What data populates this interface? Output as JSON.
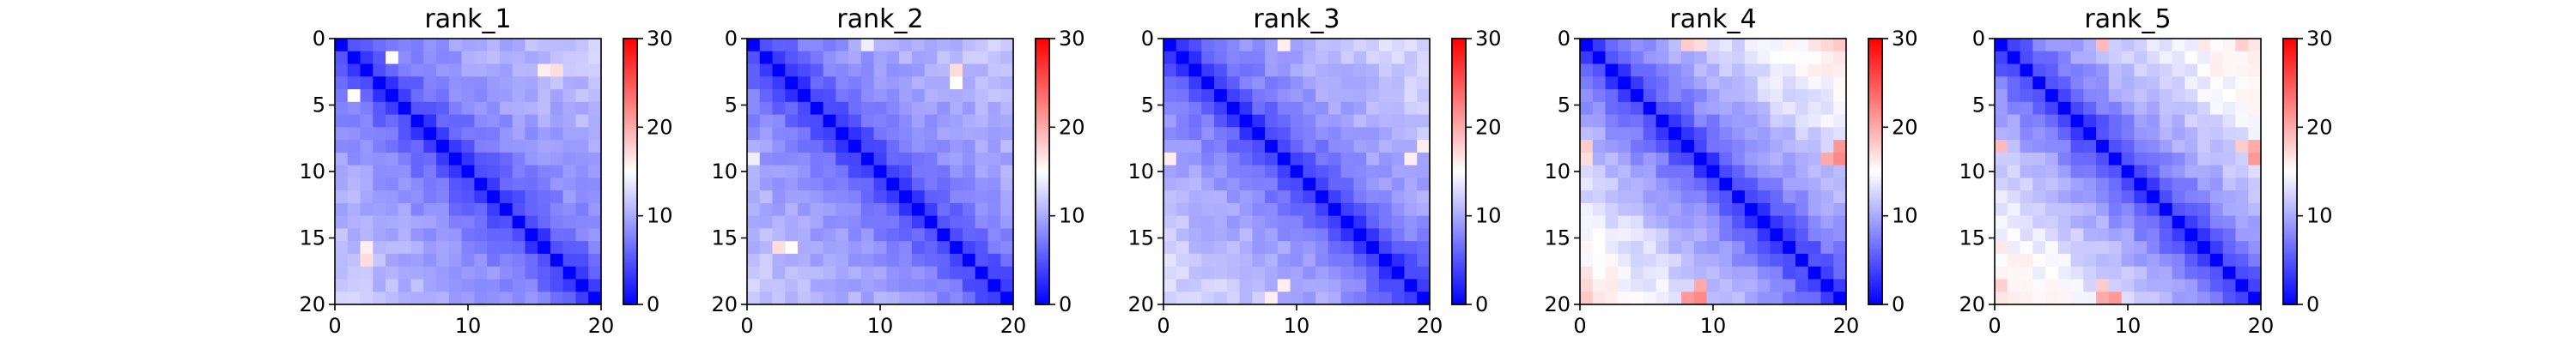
{
  "chart_data": [
    {
      "type": "heatmap",
      "title": "rank_1",
      "matrix_size": 21,
      "xlim": [
        0,
        20
      ],
      "ylim": [
        20,
        0
      ],
      "xticks": [
        0,
        10,
        20
      ],
      "yticks": [
        0,
        5,
        10,
        15,
        20
      ],
      "colorbar": {
        "vmin": 0,
        "vmax": 30,
        "ticks": [
          0,
          10,
          20,
          30
        ],
        "colormap": "bwr",
        "colors": [
          "#0000ff",
          "#ffffff",
          "#ff0000"
        ]
      },
      "distance_profile": [
        0,
        3.8,
        5.4,
        6.4,
        7.2,
        7.8,
        8.3,
        8.7,
        9.1,
        9.4,
        9.7,
        10,
        10.2,
        10.4,
        10.6,
        10.8,
        11,
        11.2,
        11.4,
        11.6,
        11.8
      ],
      "highlights": [
        {
          "row": 1,
          "col": 4,
          "value": 15
        },
        {
          "row": 2,
          "col": 17,
          "value": 17
        },
        {
          "row": 16,
          "col": 2,
          "value": 16
        }
      ]
    },
    {
      "type": "heatmap",
      "title": "rank_2",
      "matrix_size": 21,
      "xlim": [
        0,
        20
      ],
      "ylim": [
        20,
        0
      ],
      "xticks": [
        0,
        10,
        20
      ],
      "yticks": [
        0,
        5,
        10,
        15,
        20
      ],
      "colorbar": {
        "vmin": 0,
        "vmax": 30,
        "ticks": [
          0,
          10,
          20,
          30
        ],
        "colormap": "bwr",
        "colors": [
          "#0000ff",
          "#ffffff",
          "#ff0000"
        ]
      },
      "distance_profile": [
        0,
        3.8,
        5.4,
        6.4,
        7.2,
        7.8,
        8.3,
        8.7,
        9.1,
        9.4,
        9.7,
        10,
        10.2,
        10.4,
        10.6,
        10.8,
        11,
        11.2,
        11.4,
        11.6,
        11.8
      ],
      "highlights": [
        {
          "row": 0,
          "col": 9,
          "value": 14
        },
        {
          "row": 2,
          "col": 16,
          "value": 17
        },
        {
          "row": 16,
          "col": 3,
          "value": 15
        }
      ]
    },
    {
      "type": "heatmap",
      "title": "rank_3",
      "matrix_size": 21,
      "xlim": [
        0,
        20
      ],
      "ylim": [
        20,
        0
      ],
      "xticks": [
        0,
        10,
        20
      ],
      "yticks": [
        0,
        5,
        10,
        15,
        20
      ],
      "colorbar": {
        "vmin": 0,
        "vmax": 30,
        "ticks": [
          0,
          10,
          20,
          30
        ],
        "colormap": "bwr",
        "colors": [
          "#0000ff",
          "#ffffff",
          "#ff0000"
        ]
      },
      "distance_profile": [
        0,
        3.8,
        5.5,
        6.6,
        7.4,
        8,
        8.6,
        9.1,
        9.5,
        9.9,
        10.2,
        10.5,
        10.8,
        11.1,
        11.4,
        11.7,
        12,
        12.3,
        12.6,
        12.9,
        13.2
      ],
      "highlights": [
        {
          "row": 0,
          "col": 9,
          "value": 16
        },
        {
          "row": 19,
          "col": 9,
          "value": 16
        },
        {
          "row": 20,
          "col": 8,
          "value": 16
        }
      ]
    },
    {
      "type": "heatmap",
      "title": "rank_4",
      "matrix_size": 21,
      "xlim": [
        0,
        20
      ],
      "ylim": [
        20,
        0
      ],
      "xticks": [
        0,
        10,
        20
      ],
      "yticks": [
        0,
        5,
        10,
        15,
        20
      ],
      "colorbar": {
        "vmin": 0,
        "vmax": 30,
        "ticks": [
          0,
          10,
          20,
          30
        ],
        "colormap": "bwr",
        "colors": [
          "#0000ff",
          "#ffffff",
          "#ff0000"
        ]
      },
      "distance_profile": [
        0,
        3.8,
        5.6,
        6.9,
        7.9,
        8.8,
        9.5,
        10.2,
        10.8,
        11.4,
        12,
        12.5,
        13,
        13.5,
        14,
        14.5,
        15,
        15.5,
        16,
        16.5,
        17
      ],
      "highlights": [
        {
          "row": 0,
          "col": 8,
          "value": 18
        },
        {
          "row": 0,
          "col": 9,
          "value": 17
        },
        {
          "row": 19,
          "col": 9,
          "value": 20
        },
        {
          "row": 20,
          "col": 9,
          "value": 22
        },
        {
          "row": 20,
          "col": 8,
          "value": 21
        }
      ]
    },
    {
      "type": "heatmap",
      "title": "rank_5",
      "matrix_size": 21,
      "xlim": [
        0,
        20
      ],
      "ylim": [
        20,
        0
      ],
      "xticks": [
        0,
        10,
        20
      ],
      "yticks": [
        0,
        5,
        10,
        15,
        20
      ],
      "colorbar": {
        "vmin": 0,
        "vmax": 30,
        "ticks": [
          0,
          10,
          20,
          30
        ],
        "colormap": "bwr",
        "colors": [
          "#0000ff",
          "#ffffff",
          "#ff0000"
        ]
      },
      "distance_profile": [
        0,
        3.8,
        5.6,
        7,
        8.1,
        9,
        9.8,
        10.5,
        11.2,
        11.8,
        12.4,
        13,
        13.5,
        14,
        14.5,
        15,
        15.5,
        16,
        16.5,
        17,
        17.5
      ],
      "highlights": [
        {
          "row": 0,
          "col": 8,
          "value": 19
        },
        {
          "row": 20,
          "col": 8,
          "value": 20
        },
        {
          "row": 20,
          "col": 9,
          "value": 21
        },
        {
          "row": 19,
          "col": 8,
          "value": 18
        }
      ]
    }
  ]
}
